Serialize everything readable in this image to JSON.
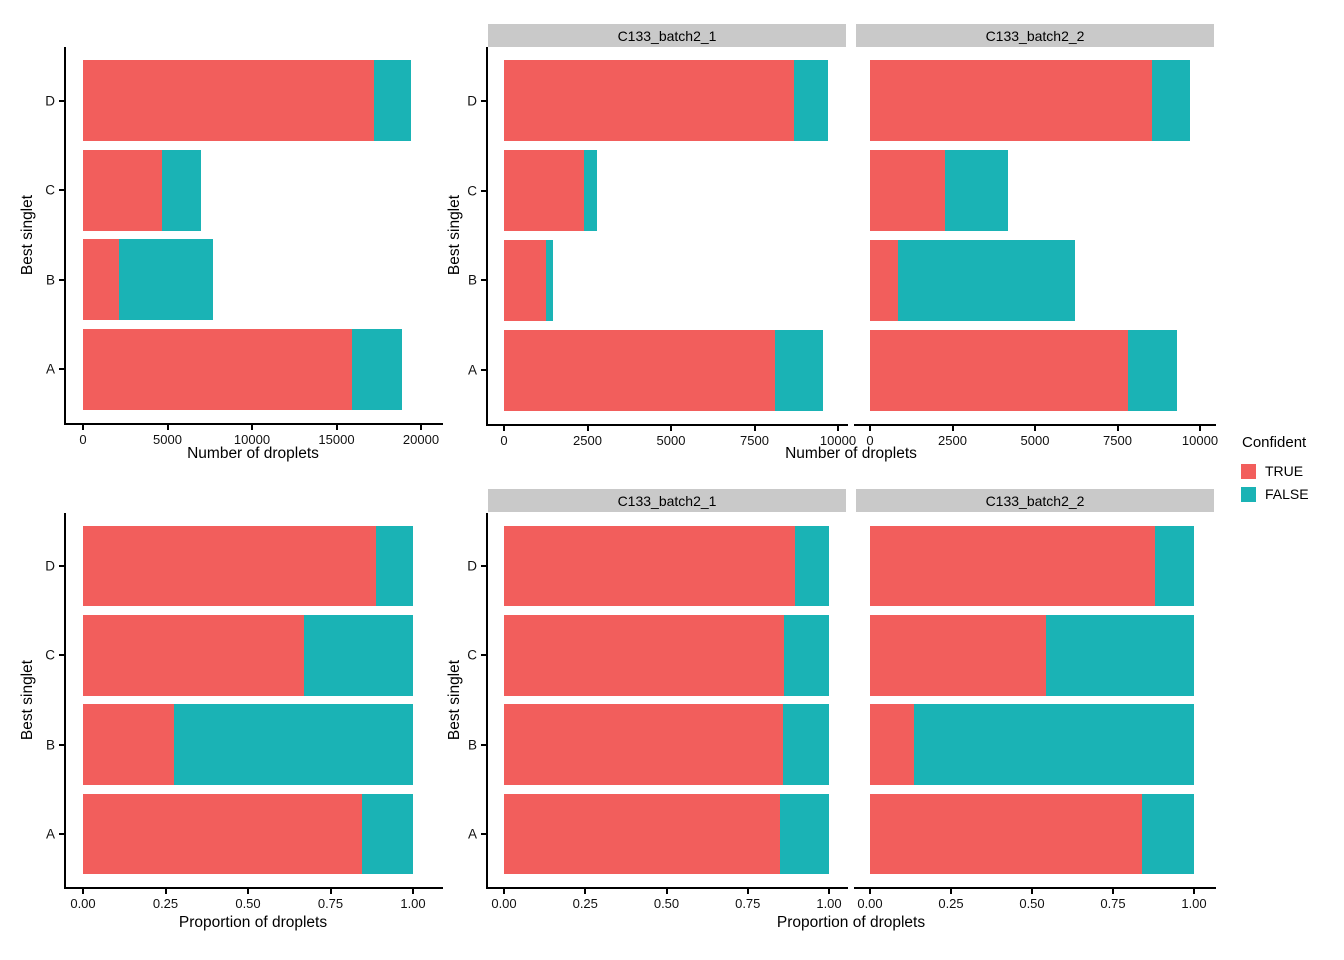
{
  "palette": {
    "series": {
      "TRUE": "#F25E5C",
      "FALSE": "#1AB3B5"
    },
    "strip_bg": "#C9C9C9",
    "axis_color": "#000000"
  },
  "legend": {
    "title": "Confident",
    "entries": [
      {
        "label": "TRUE",
        "series": "TRUE"
      },
      {
        "label": "FALSE",
        "series": "FALSE"
      }
    ]
  },
  "chart_data": [
    {
      "id": "counts-combined",
      "type": "bar",
      "orientation": "horizontal",
      "stacked": true,
      "xlabel": "Number of droplets",
      "ylabel": "Best singlet",
      "categories": [
        "A",
        "B",
        "C",
        "D"
      ],
      "series": [
        {
          "name": "TRUE",
          "values": [
            15920,
            2120,
            4670,
            17230
          ]
        },
        {
          "name": "FALSE",
          "values": [
            2930,
            5570,
            2300,
            2170
          ]
        }
      ],
      "xlim": [
        0,
        20000
      ],
      "xticks": [
        0,
        5000,
        10000,
        15000,
        20000
      ],
      "xtick_labels": [
        "0",
        "5000",
        "10000",
        "15000",
        "20000"
      ],
      "grid": false,
      "legend_position": "none"
    },
    {
      "id": "counts-faceted",
      "type": "bar",
      "orientation": "horizontal",
      "stacked": true,
      "xlabel": "Number of droplets",
      "ylabel": "Best singlet",
      "categories": [
        "A",
        "B",
        "C",
        "D"
      ],
      "facets": [
        {
          "title": "C133_batch2_1",
          "series": [
            {
              "name": "TRUE",
              "values": [
                8100,
                1270,
                2400,
                8680
              ]
            },
            {
              "name": "FALSE",
              "values": [
                1450,
                210,
                390,
                1020
              ]
            }
          ]
        },
        {
          "title": "C133_batch2_2",
          "series": [
            {
              "name": "TRUE",
              "values": [
                7820,
                850,
                2270,
                8550
              ]
            },
            {
              "name": "FALSE",
              "values": [
                1480,
                5360,
                1910,
                1150
              ]
            }
          ]
        }
      ],
      "xlim": [
        0,
        10000
      ],
      "xticks": [
        0,
        2500,
        5000,
        7500,
        10000
      ],
      "xtick_labels": [
        "0",
        "2500",
        "5000",
        "7500",
        "10000"
      ],
      "grid": false,
      "legend_position": "right"
    },
    {
      "id": "proportions-combined",
      "type": "bar",
      "orientation": "horizontal",
      "stacked": true,
      "xlabel": "Proportion of droplets",
      "ylabel": "Best singlet",
      "categories": [
        "A",
        "B",
        "C",
        "D"
      ],
      "series": [
        {
          "name": "TRUE",
          "values": [
            0.845,
            0.276,
            0.67,
            0.888
          ]
        },
        {
          "name": "FALSE",
          "values": [
            0.155,
            0.724,
            0.33,
            0.112
          ]
        }
      ],
      "xlim": [
        0,
        1
      ],
      "xticks": [
        0,
        0.25,
        0.5,
        0.75,
        1
      ],
      "xtick_labels": [
        "0.00",
        "0.25",
        "0.50",
        "0.75",
        "1.00"
      ],
      "grid": false,
      "legend_position": "none"
    },
    {
      "id": "proportions-faceted",
      "type": "bar",
      "orientation": "horizontal",
      "stacked": true,
      "xlabel": "Proportion of droplets",
      "ylabel": "Best singlet",
      "categories": [
        "A",
        "B",
        "C",
        "D"
      ],
      "facets": [
        {
          "title": "C133_batch2_1",
          "series": [
            {
              "name": "TRUE",
              "values": [
                0.848,
                0.858,
                0.86,
                0.895
              ]
            },
            {
              "name": "FALSE",
              "values": [
                0.152,
                0.142,
                0.14,
                0.105
              ]
            }
          ]
        },
        {
          "title": "C133_batch2_2",
          "series": [
            {
              "name": "TRUE",
              "values": [
                0.841,
                0.137,
                0.543,
                0.881
              ]
            },
            {
              "name": "FALSE",
              "values": [
                0.159,
                0.863,
                0.457,
                0.119
              ]
            }
          ]
        }
      ],
      "xlim": [
        0,
        1
      ],
      "xticks": [
        0,
        0.25,
        0.5,
        0.75,
        1
      ],
      "xtick_labels": [
        "0.00",
        "0.25",
        "0.50",
        "0.75",
        "1.00"
      ],
      "grid": false,
      "legend_position": "none"
    }
  ]
}
